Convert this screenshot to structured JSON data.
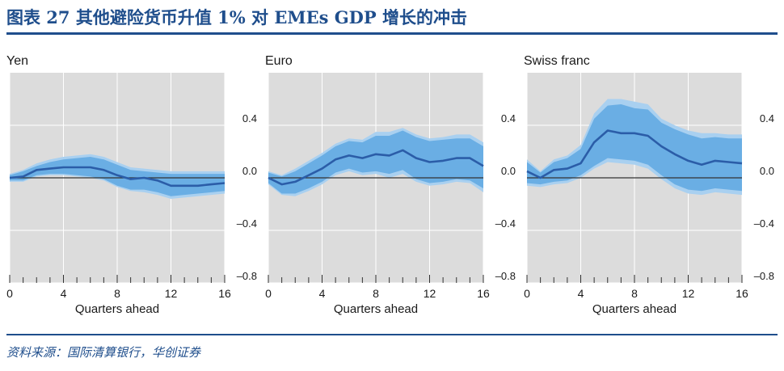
{
  "figure_title": "图表 27 其他避险货币升值 1% 对 EMEs GDP 增长的冲击",
  "source": "资料来源：国际清算银行，华创证券",
  "colors": {
    "panel_bg": "#dcdcdc",
    "outer_band": "#a9d0f0",
    "inner_band": "#6aaee4",
    "median_line": "#2b5da8",
    "accent": "#1f4e8c"
  },
  "chart_data": [
    {
      "type": "area",
      "title": "Yen",
      "xlabel": "Quarters ahead",
      "ylabel": "",
      "x_ticks": [
        0,
        4,
        8,
        12,
        16
      ],
      "y_ticks": [
        "0.4",
        "0.0",
        "–0.4",
        "–0.8"
      ],
      "y_tick_values": [
        0.4,
        0.0,
        -0.4,
        -0.8
      ],
      "xlim": [
        0,
        16
      ],
      "ylim": [
        -0.8,
        0.8
      ],
      "grid": true,
      "x": [
        0,
        1,
        2,
        3,
        4,
        5,
        6,
        7,
        8,
        9,
        10,
        11,
        12,
        13,
        14,
        15,
        16
      ],
      "median": [
        0.0,
        0.01,
        0.06,
        0.07,
        0.08,
        0.08,
        0.08,
        0.06,
        0.02,
        -0.01,
        0.0,
        -0.02,
        -0.06,
        -0.06,
        -0.06,
        -0.05,
        -0.04
      ],
      "inner_upper": [
        0.02,
        0.05,
        0.09,
        0.12,
        0.14,
        0.15,
        0.16,
        0.14,
        0.1,
        0.06,
        0.05,
        0.04,
        0.03,
        0.03,
        0.03,
        0.03,
        0.03
      ],
      "inner_lower": [
        -0.02,
        -0.02,
        0.02,
        0.03,
        0.03,
        0.02,
        0.01,
        -0.01,
        -0.06,
        -0.09,
        -0.09,
        -0.11,
        -0.14,
        -0.13,
        -0.12,
        -0.11,
        -0.1
      ],
      "outer_upper": [
        0.03,
        0.06,
        0.11,
        0.14,
        0.16,
        0.17,
        0.18,
        0.16,
        0.12,
        0.08,
        0.07,
        0.06,
        0.05,
        0.05,
        0.05,
        0.05,
        0.05
      ],
      "outer_lower": [
        -0.03,
        -0.03,
        0.01,
        0.02,
        0.02,
        0.01,
        0.0,
        -0.02,
        -0.07,
        -0.1,
        -0.11,
        -0.13,
        -0.16,
        -0.15,
        -0.14,
        -0.13,
        -0.12
      ]
    },
    {
      "type": "area",
      "title": "Euro",
      "xlabel": "Quarters ahead",
      "ylabel": "",
      "x_ticks": [
        0,
        4,
        8,
        12,
        16
      ],
      "y_ticks": [
        "0.4",
        "0.0",
        "–0.4",
        "–0.8"
      ],
      "y_tick_values": [
        0.4,
        0.0,
        -0.4,
        -0.8
      ],
      "xlim": [
        0,
        16
      ],
      "ylim": [
        -0.8,
        0.8
      ],
      "grid": true,
      "x": [
        0,
        1,
        2,
        3,
        4,
        5,
        6,
        7,
        8,
        9,
        10,
        11,
        12,
        13,
        14,
        15,
        16
      ],
      "median": [
        0.0,
        -0.05,
        -0.03,
        0.02,
        0.07,
        0.14,
        0.17,
        0.15,
        0.18,
        0.17,
        0.21,
        0.15,
        0.12,
        0.13,
        0.15,
        0.15,
        0.09
      ],
      "inner_upper": [
        0.04,
        0.01,
        0.05,
        0.11,
        0.17,
        0.24,
        0.28,
        0.27,
        0.32,
        0.32,
        0.36,
        0.31,
        0.28,
        0.29,
        0.3,
        0.3,
        0.24
      ],
      "inner_lower": [
        -0.04,
        -0.12,
        -0.12,
        -0.08,
        -0.03,
        0.04,
        0.07,
        0.04,
        0.05,
        0.03,
        0.06,
        -0.01,
        -0.04,
        -0.03,
        -0.01,
        -0.02,
        -0.08
      ],
      "outer_upper": [
        0.05,
        0.02,
        0.07,
        0.13,
        0.19,
        0.26,
        0.3,
        0.29,
        0.35,
        0.35,
        0.38,
        0.33,
        0.3,
        0.31,
        0.33,
        0.33,
        0.27
      ],
      "outer_lower": [
        -0.05,
        -0.13,
        -0.14,
        -0.1,
        -0.05,
        0.02,
        0.05,
        0.02,
        0.03,
        0.0,
        0.03,
        -0.03,
        -0.06,
        -0.05,
        -0.03,
        -0.04,
        -0.11
      ]
    },
    {
      "type": "area",
      "title": "Swiss franc",
      "xlabel": "Quarters ahead",
      "ylabel": "",
      "x_ticks": [
        0,
        4,
        8,
        12,
        16
      ],
      "y_ticks": [
        "0.4",
        "0.0",
        "–0.4",
        "–0.8"
      ],
      "y_tick_values": [
        0.4,
        0.0,
        -0.4,
        -0.8
      ],
      "xlim": [
        0,
        16
      ],
      "ylim": [
        -0.8,
        0.8
      ],
      "grid": true,
      "x": [
        0,
        1,
        2,
        3,
        4,
        5,
        6,
        7,
        8,
        9,
        10,
        11,
        12,
        13,
        14,
        15,
        16
      ],
      "median": [
        0.05,
        0.0,
        0.06,
        0.07,
        0.11,
        0.27,
        0.36,
        0.34,
        0.34,
        0.32,
        0.24,
        0.18,
        0.13,
        0.1,
        0.13,
        0.12,
        0.11
      ],
      "inner_upper": [
        0.12,
        0.04,
        0.12,
        0.15,
        0.22,
        0.45,
        0.55,
        0.56,
        0.53,
        0.52,
        0.42,
        0.37,
        0.33,
        0.3,
        0.31,
        0.3,
        0.3
      ],
      "inner_lower": [
        -0.04,
        -0.05,
        -0.03,
        -0.02,
        0.02,
        0.09,
        0.15,
        0.14,
        0.13,
        0.1,
        0.02,
        -0.05,
        -0.09,
        -0.1,
        -0.08,
        -0.09,
        -0.1
      ],
      "outer_upper": [
        0.14,
        0.05,
        0.14,
        0.17,
        0.25,
        0.49,
        0.6,
        0.6,
        0.58,
        0.56,
        0.45,
        0.4,
        0.36,
        0.34,
        0.34,
        0.33,
        0.33
      ],
      "outer_lower": [
        -0.06,
        -0.07,
        -0.05,
        -0.04,
        0.0,
        0.07,
        0.12,
        0.11,
        0.1,
        0.07,
        -0.01,
        -0.08,
        -0.12,
        -0.13,
        -0.11,
        -0.12,
        -0.13
      ]
    }
  ]
}
